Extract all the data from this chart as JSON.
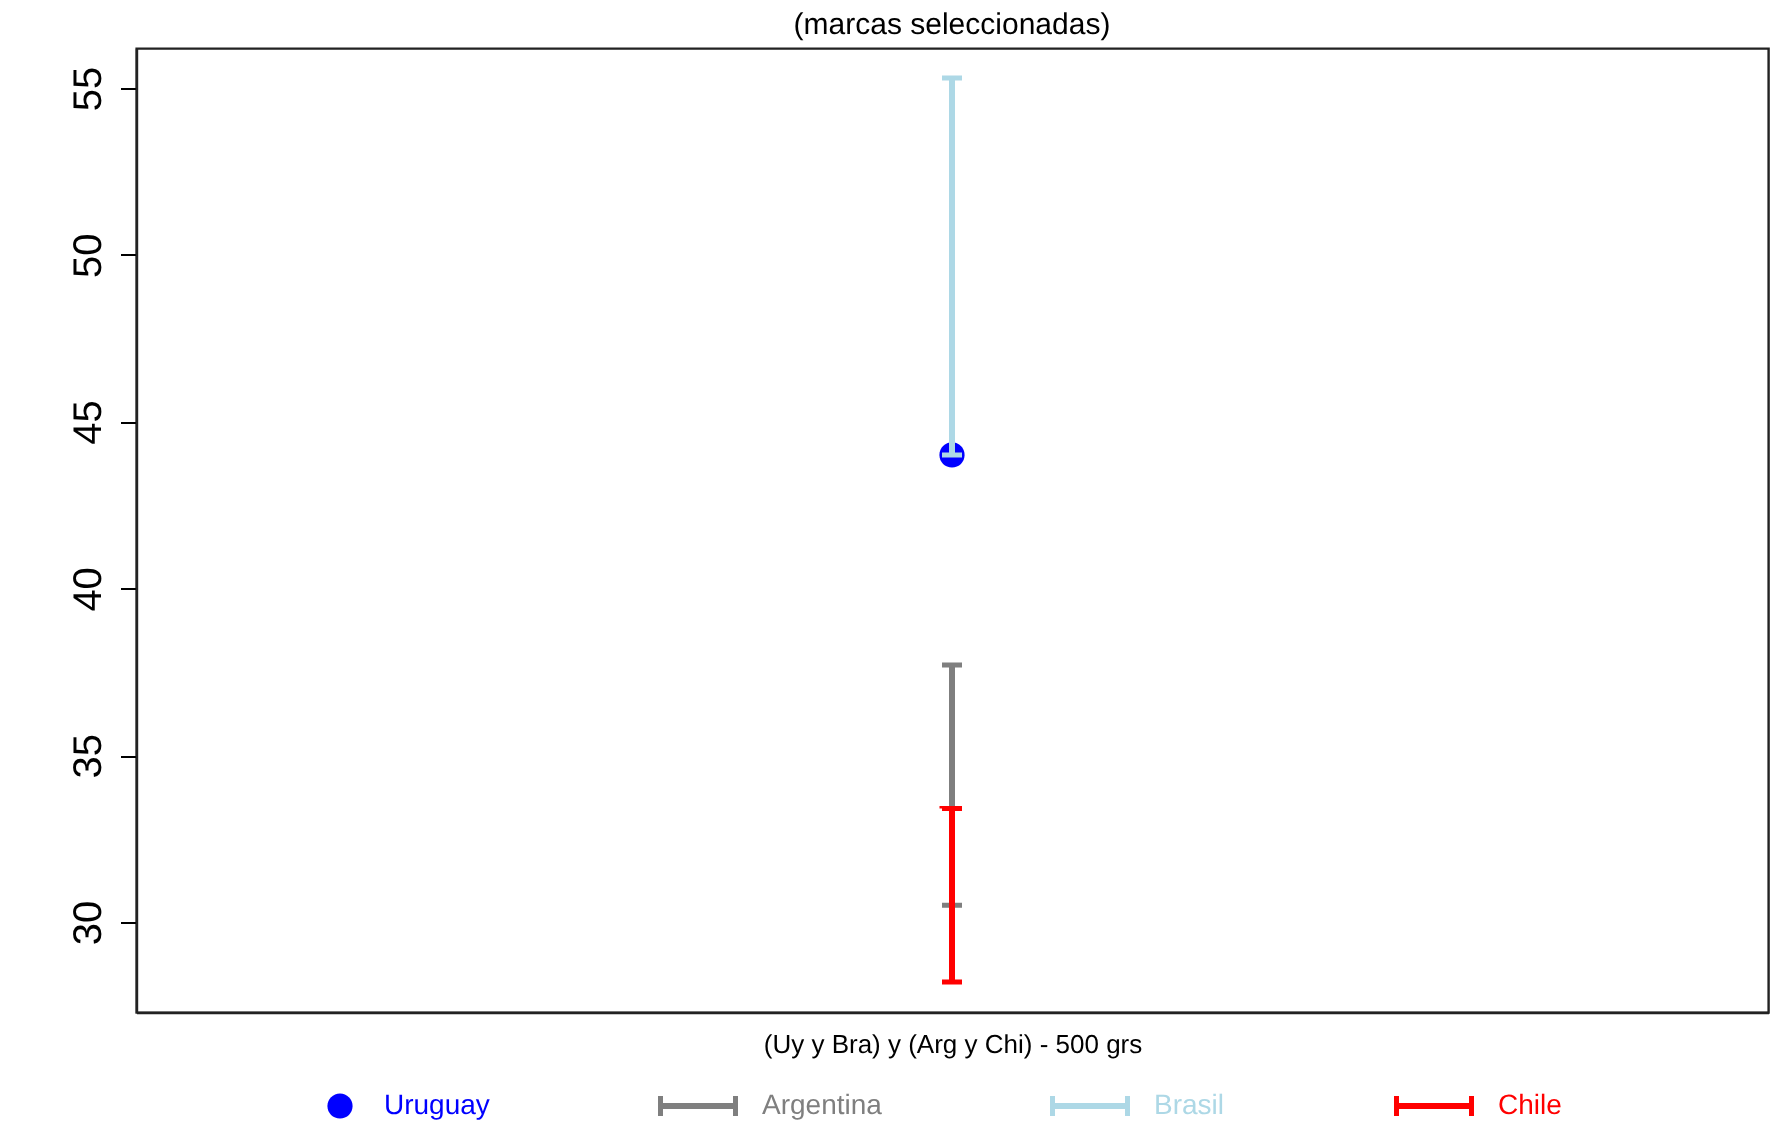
{
  "chart_data": {
    "type": "bar",
    "title": "(marcas seleccionadas)",
    "xlabel": "(Uy y Bra) y (Arg y Chi) - 500 grs",
    "categories": [
      null
    ],
    "series": [
      {
        "name": "Uruguay",
        "type": "scatter",
        "marker": "circle",
        "color": "#0000ff",
        "values": [
          44.0
        ]
      },
      {
        "name": "Argentina",
        "color": "#7f7f7f",
        "base": [
          30.5
        ],
        "values": [
          7.2
        ]
      },
      {
        "name": "Brasil",
        "color": "#add8e6",
        "base": [
          44.0
        ],
        "values": [
          11.3
        ]
      },
      {
        "name": "Chile",
        "color": "#ff0000",
        "base": [
          28.2
        ],
        "values": [
          5.2
        ]
      }
    ],
    "ylim": [
      27.3,
      56.2
    ],
    "yticks": [
      30,
      35,
      40,
      45,
      50,
      55
    ],
    "legend": "bottom"
  }
}
